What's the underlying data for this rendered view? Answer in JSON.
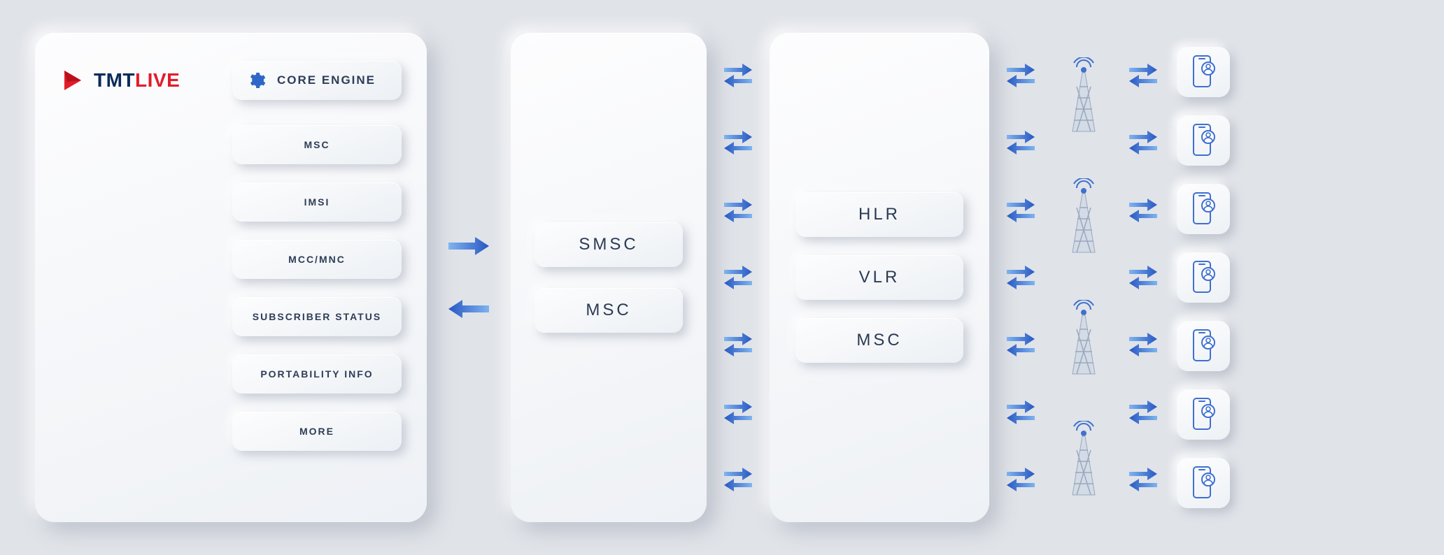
{
  "theme": {
    "background": "#e0e3e8",
    "panel_gradient_from": "#fdfdfe",
    "panel_gradient_to": "#eef1f5",
    "pill_text_color": "#2e3d57",
    "accent_blue_from": "#7fb4f0",
    "accent_blue_to": "#2757c2",
    "brand_dark": "#0b2b5a",
    "brand_red": "#e11d2a"
  },
  "brand": {
    "name_part1": "TMT",
    "name_part2": "LIVE",
    "core_engine_label": "CORE ENGINE"
  },
  "panel1_menu": {
    "items": [
      {
        "label": "MSC"
      },
      {
        "label": "IMSI"
      },
      {
        "label": "MCC/MNC"
      },
      {
        "label": "SUBSCRIBER STATUS"
      },
      {
        "label": "PORTABILITY INFO"
      },
      {
        "label": "MORE"
      }
    ]
  },
  "panel2": {
    "items": [
      {
        "label": "SMSC"
      },
      {
        "label": "MSC"
      }
    ]
  },
  "panel3": {
    "items": [
      {
        "label": "HLR"
      },
      {
        "label": "VLR"
      },
      {
        "label": "MSC"
      }
    ]
  },
  "connectors": {
    "between_1_2": {
      "arrows": [
        "right",
        "left"
      ]
    },
    "between_2_3_swap_count": 7,
    "between_3_towers_swap_count": 7,
    "between_towers_phones_swap_count": 7
  },
  "towers": {
    "count": 4
  },
  "phones": {
    "count": 7
  }
}
